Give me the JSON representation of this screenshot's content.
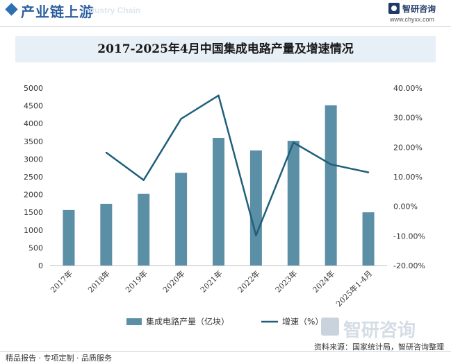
{
  "header": {
    "title": "产业链上游",
    "ghost_text": "Industry Chain",
    "brand_name": "智研咨询",
    "brand_url": "www.chyxx.com"
  },
  "chart_title": "2017-2025年4月中国集成电路产量及增速情况",
  "chart_data": {
    "type": "bar",
    "title": "2017-2025年4月中国集成电路产量及增速情况",
    "categories": [
      "2017年",
      "2018年",
      "2019年",
      "2020年",
      "2021年",
      "2022年",
      "2023年",
      "2024年",
      "2025年1-4月"
    ],
    "series": [
      {
        "name": "集成电路产量（亿块）",
        "type": "bar",
        "axis": "left",
        "color": "#5b8fa6",
        "values": [
          1565,
          1740,
          2018,
          2614,
          3594,
          3242,
          3514,
          4514,
          1500
        ]
      },
      {
        "name": "增速（%）",
        "type": "line",
        "axis": "right",
        "color": "#1f5f7a",
        "values": [
          null,
          18.2,
          8.9,
          29.6,
          37.5,
          -9.8,
          21.6,
          14.2,
          11.5
        ]
      }
    ],
    "y_left": {
      "min": 0,
      "max": 5000,
      "ticks": [
        "0",
        "500",
        "1000",
        "1500",
        "2000",
        "2500",
        "3000",
        "3500",
        "4000",
        "4500",
        "5000"
      ]
    },
    "y_right": {
      "min": -20,
      "max": 40,
      "ticks": [
        "-20.00%",
        "-10.00%",
        "0.00%",
        "10.00%",
        "20.00%",
        "30.00%",
        "40.00%"
      ]
    },
    "legend_position": "bottom",
    "grid": false
  },
  "footer": {
    "left": "精品报告 · 专项定制 · 品质服务",
    "source": "资料来源：国家统计局，智研咨询整理",
    "watermark": "智研咨询"
  }
}
